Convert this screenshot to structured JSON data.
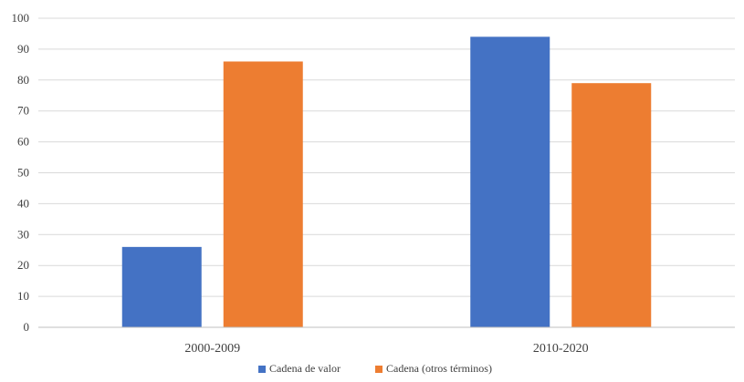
{
  "chart_data": {
    "type": "bar",
    "title": "",
    "xlabel": "",
    "ylabel": "",
    "categories": [
      "2000-2009",
      "2010-2020"
    ],
    "series": [
      {
        "name": "Cadena de valor",
        "values": [
          26,
          94
        ],
        "color": "#4472C4"
      },
      {
        "name": "Cadena (otros términos)",
        "values": [
          86,
          79
        ],
        "color": "#ED7D31"
      }
    ],
    "ylim": [
      0,
      100
    ],
    "yticks": [
      "0",
      "10",
      "20",
      "30",
      "40",
      "50",
      "60",
      "70",
      "80",
      "90",
      "100"
    ],
    "grid": true,
    "legend_position": "bottom"
  }
}
